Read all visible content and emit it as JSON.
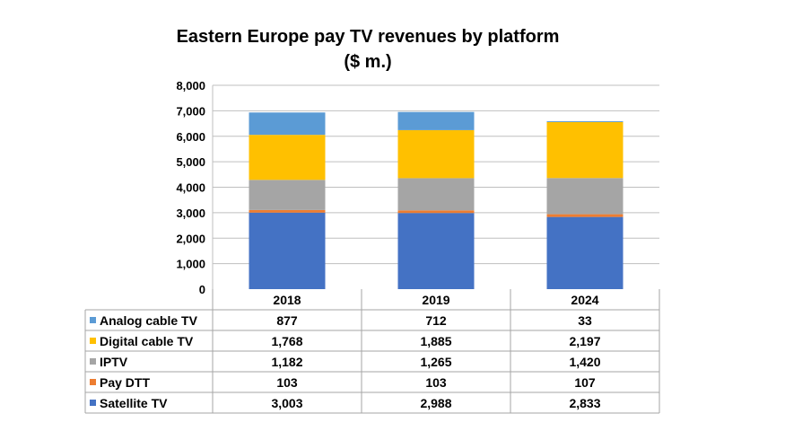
{
  "chart_data": {
    "type": "bar",
    "stacked": true,
    "title": "Eastern Europe pay TV revenues by platform",
    "subtitle": "($ m.)",
    "categories": [
      "2018",
      "2019",
      "2024"
    ],
    "ylim": [
      0,
      8000
    ],
    "y_ticks": [
      "0",
      "1,000",
      "2,000",
      "3,000",
      "4,000",
      "5,000",
      "6,000",
      "7,000",
      "8,000"
    ],
    "grid": true,
    "legend_placement": "data-table",
    "series": [
      {
        "name": "Satellite TV",
        "color": "#4472C4",
        "values": [
          3003,
          2988,
          2833
        ],
        "labels": [
          "3,003",
          "2,988",
          "2,833"
        ]
      },
      {
        "name": "Pay DTT",
        "color": "#ED7D31",
        "values": [
          103,
          103,
          107
        ],
        "labels": [
          "103",
          "103",
          "107"
        ]
      },
      {
        "name": "IPTV",
        "color": "#A5A5A5",
        "values": [
          1182,
          1265,
          1420
        ],
        "labels": [
          "1,182",
          "1,265",
          "1,420"
        ]
      },
      {
        "name": "Digital cable TV",
        "color": "#FFC000",
        "values": [
          1768,
          1885,
          2197
        ],
        "labels": [
          "1,768",
          "1,885",
          "2,197"
        ]
      },
      {
        "name": "Analog cable TV",
        "color": "#5B9BD5",
        "values": [
          877,
          712,
          33
        ],
        "labels": [
          "877",
          "712",
          "33"
        ]
      }
    ]
  }
}
